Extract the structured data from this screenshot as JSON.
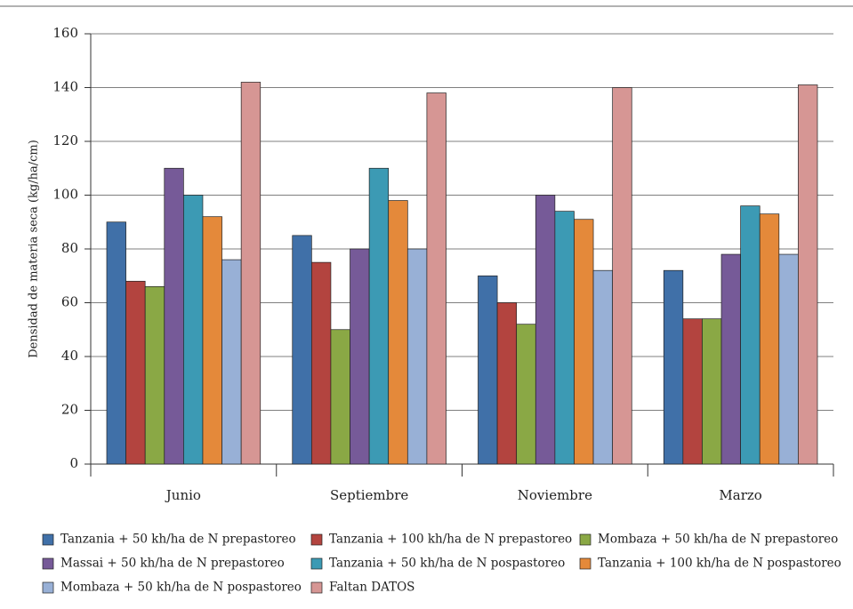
{
  "chart_data": {
    "type": "bar",
    "y_label": "Densidad de materia seca (kg/ha/cm)",
    "categories": [
      "Junio",
      "Septiembre",
      "Noviembre",
      "Marzo"
    ],
    "series": [
      {
        "name": "Tanzania + 50 kh/ha de N prepastoreo",
        "color": "#4070a8",
        "values": [
          90,
          85,
          70,
          72
        ]
      },
      {
        "name": "Tanzania + 100 kh/ha de N prepastoreo",
        "color": "#b3443f",
        "values": [
          68,
          75,
          60,
          54
        ]
      },
      {
        "name": "Mombaza + 50 kh/ha de N prepastoreo",
        "color": "#8aa845",
        "values": [
          66,
          50,
          52,
          54
        ]
      },
      {
        "name": "Massai + 50 kh/ha de N prepastoreo",
        "color": "#765a98",
        "values": [
          110,
          80,
          100,
          78
        ]
      },
      {
        "name": "Tanzania + 50 kh/ha de N pospastoreo",
        "color": "#3c9ab4",
        "values": [
          100,
          110,
          94,
          96
        ]
      },
      {
        "name": "Tanzania + 100 kh/ha de N pospastoreo",
        "color": "#e4893a",
        "values": [
          92,
          98,
          91,
          93
        ]
      },
      {
        "name": "Mombaza + 50 kh/ha de N pospastoreo",
        "color": "#98b0d6",
        "values": [
          76,
          80,
          72,
          78
        ]
      },
      {
        "name": "Faltan DATOS",
        "color": "#d69694",
        "values": [
          142,
          138,
          140,
          141
        ]
      }
    ],
    "ylim": [
      0,
      160
    ],
    "yticks": [
      0,
      20,
      40,
      60,
      80,
      100,
      120,
      140,
      160
    ],
    "grid": true
  }
}
